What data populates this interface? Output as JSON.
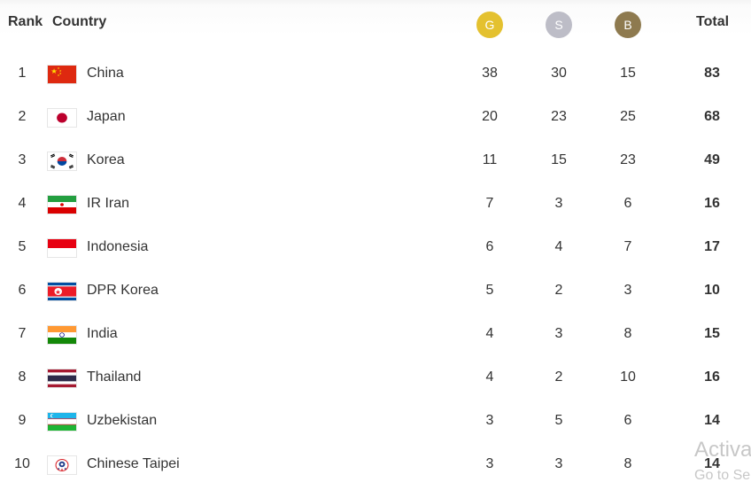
{
  "header": {
    "rank": "Rank",
    "country": "Country",
    "gold": "G",
    "silver": "S",
    "bronze": "B",
    "total": "Total"
  },
  "colors": {
    "gold": "#e4c12f",
    "silver": "#bdbdc7",
    "bronze": "#8e7a4f"
  },
  "rows": [
    {
      "rank": "1",
      "country": "China",
      "flag": "china-flag-icon",
      "gold": "38",
      "silver": "30",
      "bronze": "15",
      "total": "83"
    },
    {
      "rank": "2",
      "country": "Japan",
      "flag": "japan-flag-icon",
      "gold": "20",
      "silver": "23",
      "bronze": "25",
      "total": "68"
    },
    {
      "rank": "3",
      "country": "Korea",
      "flag": "korea-flag-icon",
      "gold": "11",
      "silver": "15",
      "bronze": "23",
      "total": "49"
    },
    {
      "rank": "4",
      "country": "IR Iran",
      "flag": "iran-flag-icon",
      "gold": "7",
      "silver": "3",
      "bronze": "6",
      "total": "16"
    },
    {
      "rank": "5",
      "country": "Indonesia",
      "flag": "indonesia-flag-icon",
      "gold": "6",
      "silver": "4",
      "bronze": "7",
      "total": "17"
    },
    {
      "rank": "6",
      "country": "DPR Korea",
      "flag": "dpr-korea-flag-icon",
      "gold": "5",
      "silver": "2",
      "bronze": "3",
      "total": "10"
    },
    {
      "rank": "7",
      "country": "India",
      "flag": "india-flag-icon",
      "gold": "4",
      "silver": "3",
      "bronze": "8",
      "total": "15"
    },
    {
      "rank": "8",
      "country": "Thailand",
      "flag": "thailand-flag-icon",
      "gold": "4",
      "silver": "2",
      "bronze": "10",
      "total": "16"
    },
    {
      "rank": "9",
      "country": "Uzbekistan",
      "flag": "uzbekistan-flag-icon",
      "gold": "3",
      "silver": "5",
      "bronze": "6",
      "total": "14"
    },
    {
      "rank": "10",
      "country": "Chinese Taipei",
      "flag": "chinese-taipei-flag-icon",
      "gold": "3",
      "silver": "3",
      "bronze": "8",
      "total": "14"
    }
  ],
  "watermark": {
    "line1": "Activa",
    "line2": "Go to Se"
  }
}
